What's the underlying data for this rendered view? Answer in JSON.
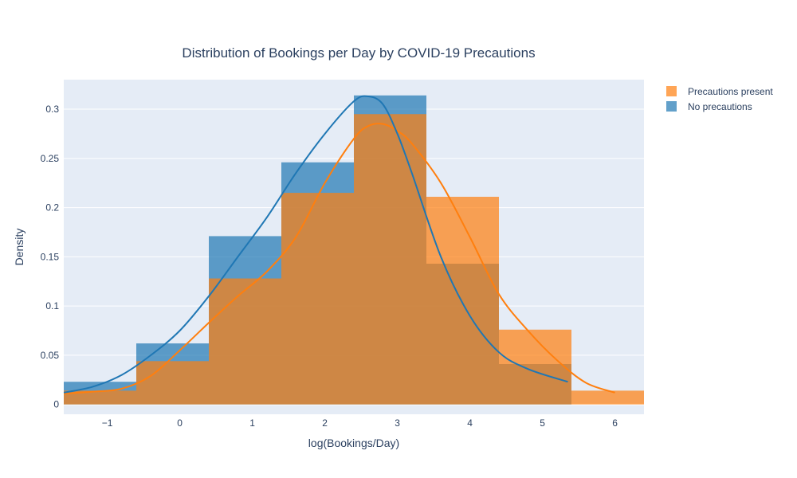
{
  "chart_data": {
    "type": "histogram",
    "title": "Distribution of Bookings per Day by COVID-19 Precautions",
    "xlabel": "log(Bookings/Day)",
    "ylabel": "Density",
    "xlim": [
      -1.6,
      6.4
    ],
    "ylim": [
      -0.01,
      0.33
    ],
    "x_ticks": [
      -1,
      0,
      1,
      2,
      3,
      4,
      5,
      6
    ],
    "x_tick_labels": [
      "−1",
      "0",
      "1",
      "2",
      "3",
      "4",
      "5",
      "6"
    ],
    "y_ticks": [
      0,
      0.05,
      0.1,
      0.15,
      0.2,
      0.25,
      0.3
    ],
    "y_tick_labels": [
      "0",
      "0.05",
      "0.1",
      "0.15",
      "0.2",
      "0.25",
      "0.3"
    ],
    "bin_edges": [
      -1.6,
      -0.6,
      0.4,
      1.4,
      2.4,
      3.4,
      4.4,
      5.4,
      6.4
    ],
    "grid": true,
    "legend_position": "top-right",
    "series": [
      {
        "name": "Precautions present",
        "color": "#ff7f0e",
        "values": [
          0.014,
          0.044,
          0.128,
          0.215,
          0.295,
          0.211,
          0.076,
          0.014
        ],
        "kde": {
          "x": [
            -1.6,
            -1.2,
            -0.8,
            -0.4,
            0.0,
            0.4,
            0.8,
            1.2,
            1.6,
            2.0,
            2.4,
            2.6,
            2.8,
            3.0,
            3.2,
            3.6,
            4.0,
            4.4,
            4.8,
            5.2,
            5.6,
            6.0
          ],
          "y": [
            0.011,
            0.013,
            0.016,
            0.029,
            0.055,
            0.083,
            0.11,
            0.135,
            0.17,
            0.225,
            0.27,
            0.283,
            0.285,
            0.278,
            0.265,
            0.225,
            0.17,
            0.112,
            0.075,
            0.045,
            0.022,
            0.012
          ]
        }
      },
      {
        "name": "No precautions",
        "color": "#1f77b4",
        "values": [
          0.023,
          0.062,
          0.171,
          0.246,
          0.314,
          0.143,
          0.041,
          0
        ],
        "kde": {
          "x": [
            -1.6,
            -1.2,
            -0.8,
            -0.4,
            0.0,
            0.4,
            0.8,
            1.2,
            1.6,
            2.0,
            2.4,
            2.6,
            2.8,
            3.0,
            3.2,
            3.6,
            4.0,
            4.4,
            4.8,
            5.35
          ],
          "y": [
            0.012,
            0.018,
            0.03,
            0.05,
            0.075,
            0.11,
            0.15,
            0.19,
            0.235,
            0.275,
            0.308,
            0.313,
            0.305,
            0.275,
            0.235,
            0.15,
            0.09,
            0.053,
            0.036,
            0.023
          ]
        }
      }
    ]
  }
}
